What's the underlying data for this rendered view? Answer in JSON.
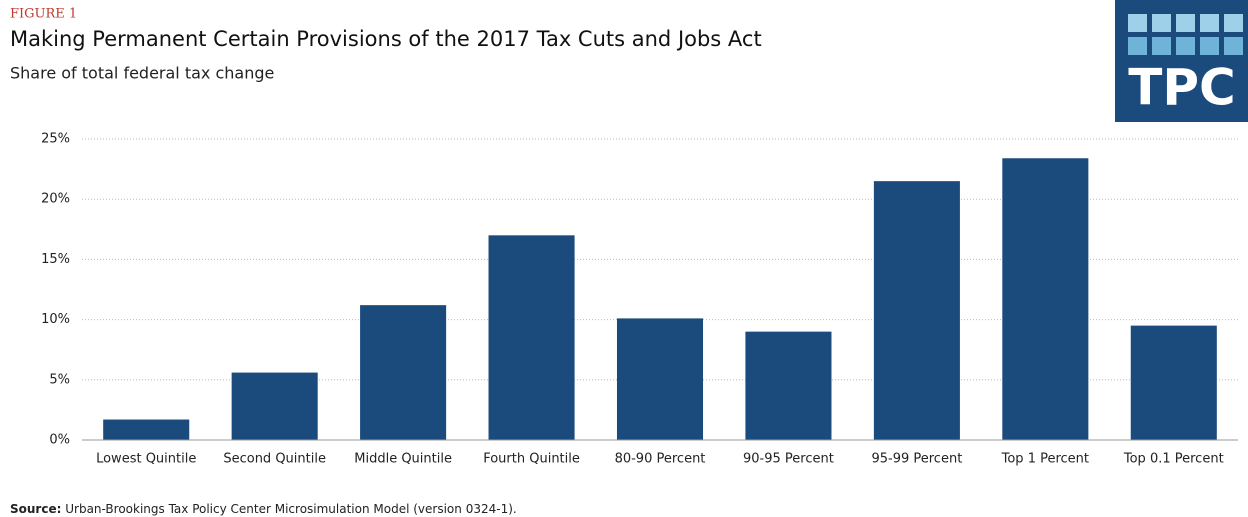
{
  "figure_label": "FIGURE 1",
  "logo_text": "TPC",
  "source_label": "Source:",
  "source": "Urban-Brookings  Tax Policy Center Microsimulation  Model (version 0324-1).",
  "chart_data": {
    "type": "bar",
    "title": "Making Permanent Certain Provisions of the 2017 Tax Cuts and Jobs Act",
    "subtitle": "Share of total federal tax change",
    "categories": [
      "Lowest Quintile",
      "Second Quintile",
      "Middle Quintile",
      "Fourth Quintile",
      "80-90 Percent",
      "90-95 Percent",
      "95-99 Percent",
      "Top 1 Percent",
      "Top 0.1 Percent"
    ],
    "values": [
      1.7,
      5.6,
      11.2,
      17.0,
      10.1,
      9.0,
      21.5,
      23.4,
      9.5
    ],
    "color": "#1b4a7d",
    "ylim": [
      0,
      25
    ],
    "yticks": [
      {
        "value": 0,
        "label": "0%"
      },
      {
        "value": 5,
        "label": "5%"
      },
      {
        "value": 10,
        "label": "10%"
      },
      {
        "value": 15,
        "label": "15%"
      },
      {
        "value": 20,
        "label": "20%"
      },
      {
        "value": 25,
        "label": "25%"
      }
    ],
    "grid": true
  }
}
